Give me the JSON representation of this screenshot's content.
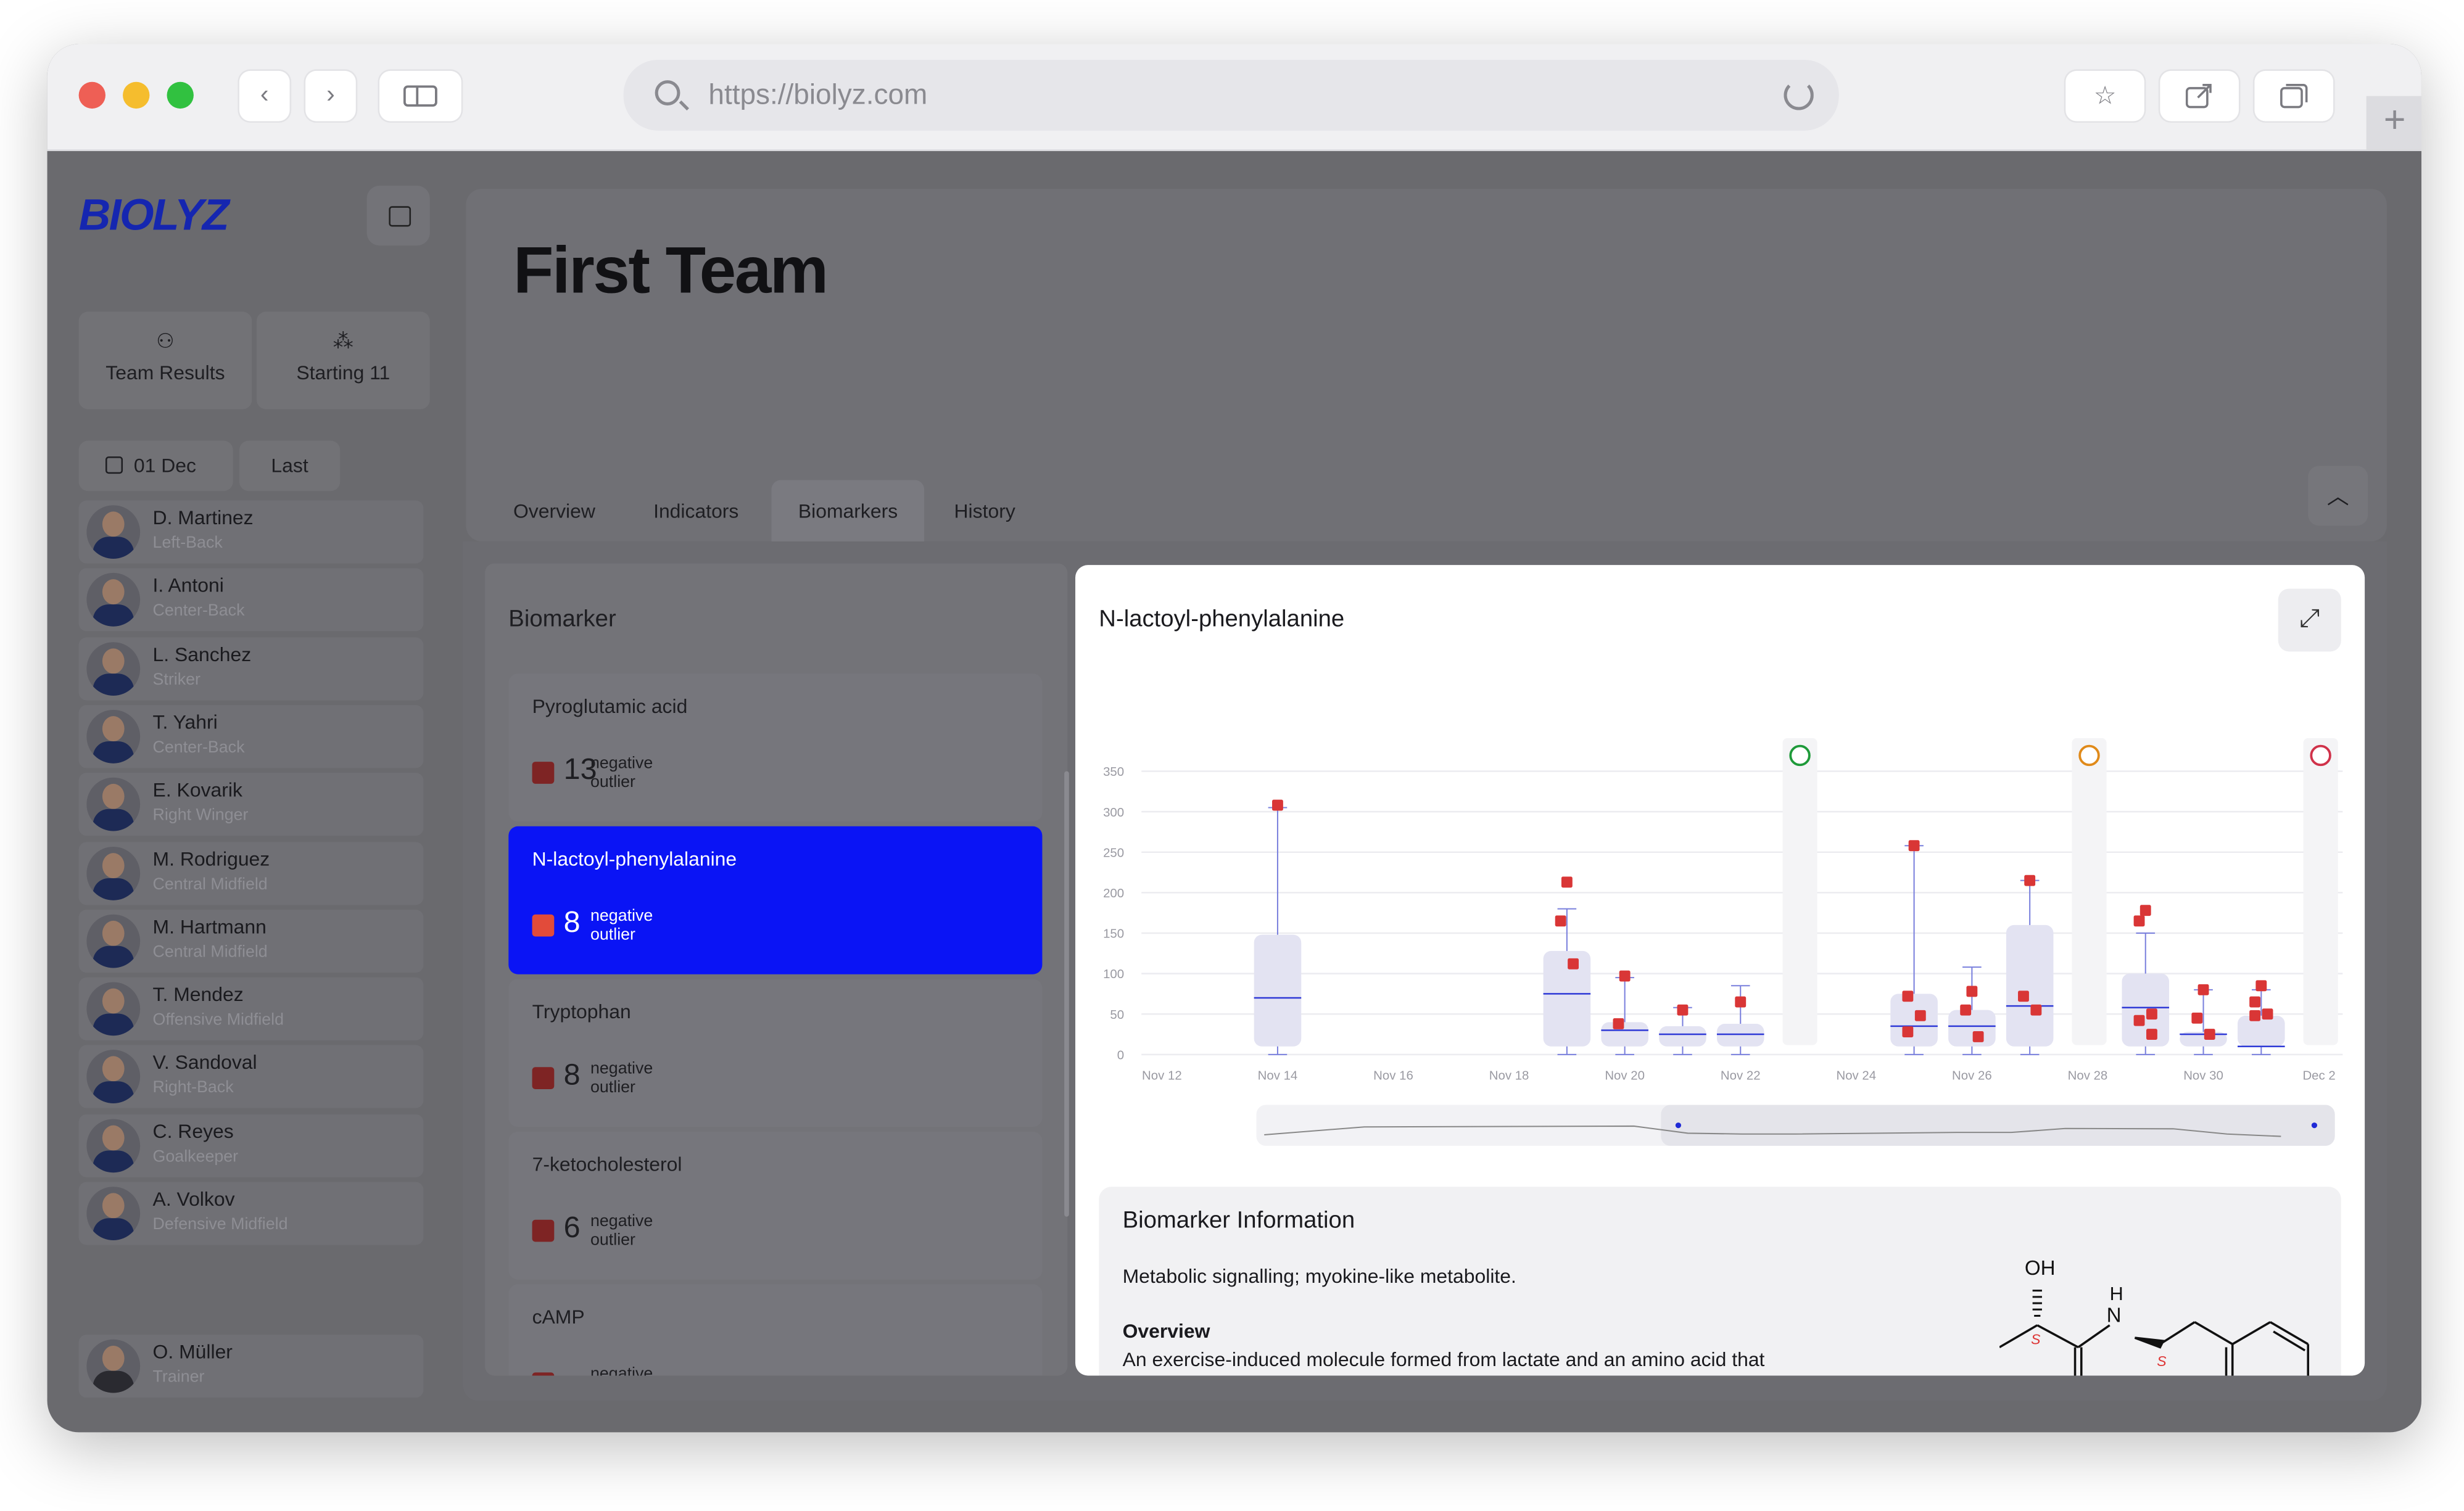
{
  "browser": {
    "url": "https://biolyz.com"
  },
  "sidebar": {
    "logo": "BIOLYZ",
    "tiles": [
      {
        "label": "Team Results"
      },
      {
        "label": "Starting 11"
      }
    ],
    "date": "01 Dec",
    "range": "Last",
    "players": [
      {
        "name": "D. Martinez",
        "role": "Left-Back"
      },
      {
        "name": "I. Antoni",
        "role": "Center-Back"
      },
      {
        "name": "L. Sanchez",
        "role": "Striker"
      },
      {
        "name": "T. Yahri",
        "role": "Center-Back"
      },
      {
        "name": "E. Kovarik",
        "role": "Right Winger"
      },
      {
        "name": "M. Rodriguez",
        "role": "Central Midfield"
      },
      {
        "name": "M. Hartmann",
        "role": "Central Midfield"
      },
      {
        "name": "T. Mendez",
        "role": "Offensive Midfield"
      },
      {
        "name": "V. Sandoval",
        "role": "Right-Back"
      },
      {
        "name": "C. Reyes",
        "role": "Goalkeeper"
      },
      {
        "name": "A. Volkov",
        "role": "Defensive Midfield"
      }
    ],
    "trainer": {
      "name": "O. Müller",
      "role": "Trainer"
    }
  },
  "header": {
    "title": "First Team",
    "tabs": [
      "Overview",
      "Indicators",
      "Biomarkers",
      "History"
    ],
    "active_tab": "Biomarkers"
  },
  "biomarker_list": {
    "title": "Biomarker",
    "items": [
      {
        "name": "Pyroglutamic acid",
        "count": "13",
        "label_line1": "negative",
        "label_line2": "outlier"
      },
      {
        "name": "N-lactoyl-phenylalanine",
        "count": "8",
        "label_line1": "negative",
        "label_line2": "outlier",
        "active": true
      },
      {
        "name": "Tryptophan",
        "count": "8",
        "label_line1": "negative",
        "label_line2": "outlier"
      },
      {
        "name": "7-ketocholesterol",
        "count": "6",
        "label_line1": "negative",
        "label_line2": "outlier"
      },
      {
        "name": "cAMP",
        "count": "",
        "label_line1": "negative",
        "label_line2": ""
      }
    ]
  },
  "detail": {
    "title": "N-lactoyl-phenylalanine",
    "info_title": "Biomarker Information",
    "info_desc": "Metabolic signalling; myokine-like metabolite.",
    "overview_label": "Overview",
    "overview_text": "An exercise-induced molecule formed from lactate and an amino acid that",
    "molecule": {
      "oh": "OH",
      "nh_h": "H",
      "nh_n": "N",
      "stereo_1": "S",
      "stereo_2": "S"
    }
  },
  "chart_data": {
    "type": "box",
    "title": "N-lactoyl-phenylalanine",
    "xlabel": "",
    "ylabel": "",
    "ylim": [
      0,
      350
    ],
    "yticks": [
      0,
      50,
      100,
      150,
      200,
      250,
      300,
      350
    ],
    "x_tick_labels": [
      "Nov 12",
      "Nov 14",
      "Nov 16",
      "Nov 18",
      "Nov 20",
      "Nov 22",
      "Nov 24",
      "Nov 26",
      "Nov 28",
      "Nov 30",
      "Dec 2"
    ],
    "grid": true,
    "match_markers": [
      "Nov 23",
      "Nov 28",
      "Dec 2"
    ],
    "colors": {
      "box": "#e3e3f2",
      "median": "#2f3ad6",
      "whisker": "#7a80dd",
      "outlier": "#d93636"
    },
    "boxes": [
      {
        "date": "Nov 14",
        "low": 0,
        "q1": 10,
        "median": 70,
        "q3": 148,
        "high": 305,
        "outliers": [
          308
        ]
      },
      {
        "date": "Nov 19",
        "low": 0,
        "q1": 10,
        "median": 75,
        "q3": 128,
        "high": 180,
        "outliers": [
          213,
          165,
          112
        ]
      },
      {
        "date": "Nov 20",
        "low": 0,
        "q1": 10,
        "median": 30,
        "q3": 40,
        "high": 95,
        "outliers": [
          97,
          38
        ]
      },
      {
        "date": "Nov 21",
        "low": 0,
        "q1": 10,
        "median": 25,
        "q3": 35,
        "high": 58,
        "outliers": [
          55
        ]
      },
      {
        "date": "Nov 22",
        "low": 0,
        "q1": 10,
        "median": 25,
        "q3": 38,
        "high": 85,
        "outliers": [
          65
        ]
      },
      {
        "date": "Nov 25",
        "low": 0,
        "q1": 10,
        "median": 35,
        "q3": 75,
        "high": 258,
        "outliers": [
          258,
          72,
          48,
          28
        ]
      },
      {
        "date": "Nov 26",
        "low": 0,
        "q1": 10,
        "median": 35,
        "q3": 55,
        "high": 108,
        "outliers": [
          78,
          55,
          22
        ]
      },
      {
        "date": "Nov 27",
        "low": 0,
        "q1": 10,
        "median": 60,
        "q3": 160,
        "high": 215,
        "outliers": [
          215,
          72,
          55
        ]
      },
      {
        "date": "Nov 29",
        "low": 0,
        "q1": 10,
        "median": 58,
        "q3": 100,
        "high": 150,
        "outliers": [
          178,
          165,
          50,
          42,
          25
        ]
      },
      {
        "date": "Nov 30",
        "low": 0,
        "q1": 10,
        "median": 25,
        "q3": 28,
        "high": 80,
        "outliers": [
          80,
          45,
          25
        ]
      },
      {
        "date": "Dec 1",
        "low": 0,
        "q1": 10,
        "median": 10,
        "q3": 48,
        "high": 80,
        "outliers": [
          85,
          65,
          50,
          48
        ]
      }
    ]
  }
}
